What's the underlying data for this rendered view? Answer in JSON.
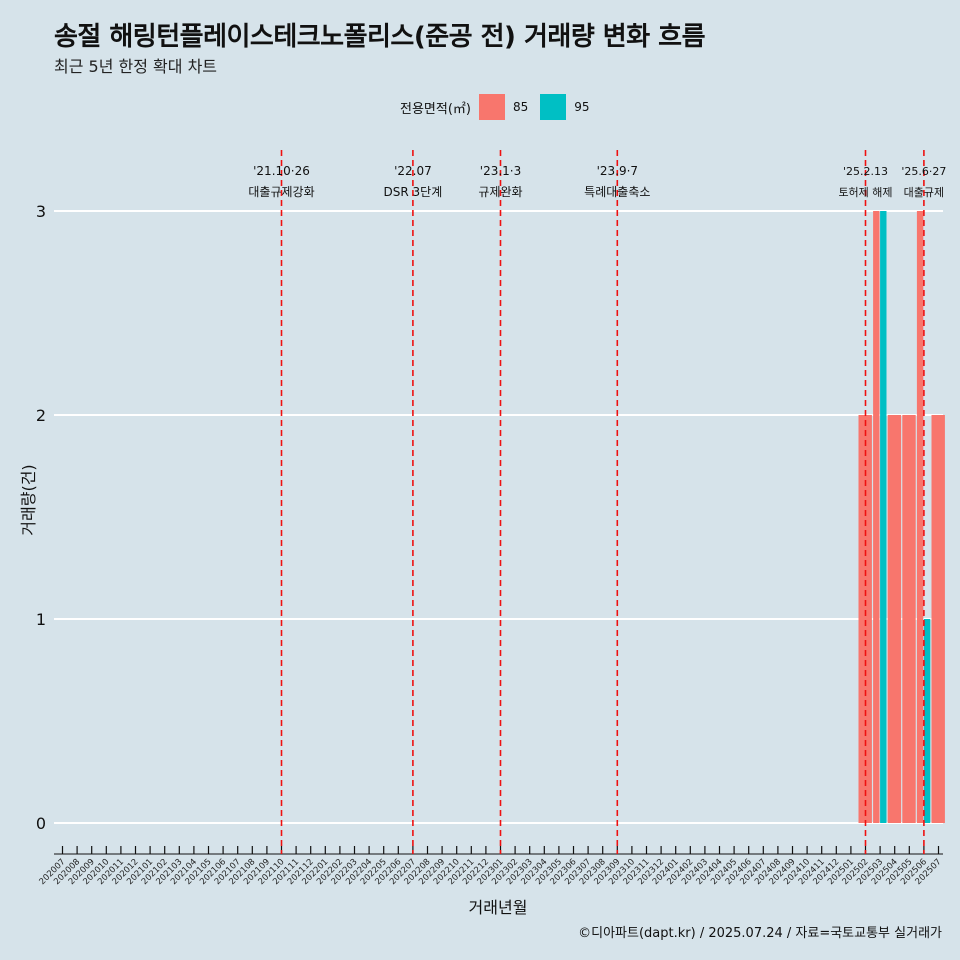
{
  "title": "송절 해링턴플레이스테크노폴리스(준공 전) 거래량 변화 흐름",
  "subtitle": "최근 5년 한정 확대 차트",
  "caption": "©디아파트(dapt.kr) / 2025.07.24 / 자료=국토교통부 실거래가",
  "legend": {
    "title": "전용면적(㎡)",
    "items": [
      {
        "label": "85",
        "color": "#f8766d"
      },
      {
        "label": "95",
        "color": "#00bfc4"
      }
    ]
  },
  "chart_data": {
    "type": "bar",
    "xlabel": "거래년월",
    "ylabel": "거래량(건)",
    "ylim": [
      0,
      3
    ],
    "yticks": [
      0,
      1,
      2,
      3
    ],
    "grid": true,
    "legend_position": "top",
    "categories": [
      "202007",
      "202008",
      "202009",
      "202010",
      "202011",
      "202012",
      "202101",
      "202102",
      "202103",
      "202104",
      "202105",
      "202106",
      "202107",
      "202108",
      "202109",
      "202110",
      "202111",
      "202112",
      "202201",
      "202202",
      "202203",
      "202204",
      "202205",
      "202206",
      "202207",
      "202208",
      "202209",
      "202210",
      "202211",
      "202212",
      "202301",
      "202302",
      "202303",
      "202304",
      "202305",
      "202306",
      "202307",
      "202308",
      "202309",
      "202310",
      "202311",
      "202312",
      "202401",
      "202402",
      "202403",
      "202404",
      "202405",
      "202406",
      "202407",
      "202408",
      "202409",
      "202410",
      "202411",
      "202412",
      "202501",
      "202502",
      "202503",
      "202504",
      "202505",
      "202506",
      "202507"
    ],
    "series": [
      {
        "name": "85",
        "color": "#f8766d",
        "values": [
          0,
          0,
          0,
          0,
          0,
          0,
          0,
          0,
          0,
          0,
          0,
          0,
          0,
          0,
          0,
          0,
          0,
          0,
          0,
          0,
          0,
          0,
          0,
          0,
          0,
          0,
          0,
          0,
          0,
          0,
          0,
          0,
          0,
          0,
          0,
          0,
          0,
          0,
          0,
          0,
          0,
          0,
          0,
          0,
          0,
          0,
          0,
          0,
          0,
          0,
          0,
          0,
          0,
          0,
          0,
          2,
          3,
          2,
          2,
          3,
          2
        ]
      },
      {
        "name": "95",
        "color": "#00bfc4",
        "values": [
          0,
          0,
          0,
          0,
          0,
          0,
          0,
          0,
          0,
          0,
          0,
          0,
          0,
          0,
          0,
          0,
          0,
          0,
          0,
          0,
          0,
          0,
          0,
          0,
          0,
          0,
          0,
          0,
          0,
          0,
          0,
          0,
          0,
          0,
          0,
          0,
          0,
          0,
          0,
          0,
          0,
          0,
          0,
          0,
          0,
          0,
          0,
          0,
          0,
          0,
          0,
          0,
          0,
          0,
          0,
          0,
          3,
          0,
          0,
          1,
          0
        ]
      }
    ],
    "events": [
      {
        "month": "202110",
        "date": "'21.10·26",
        "text": "대출규제강화"
      },
      {
        "month": "202207",
        "date": "'22.07",
        "text": "DSR 3단계"
      },
      {
        "month": "202301",
        "date": "'23.1·3",
        "text": "규제완화"
      },
      {
        "month": "202309",
        "date": "'23.9·7",
        "text": "특례대출축소"
      },
      {
        "month": "202502",
        "date": "'25.2.13",
        "text": "토허제 해제"
      },
      {
        "month": "202506",
        "date": "'25.6·27",
        "text": "대출규제"
      }
    ]
  }
}
